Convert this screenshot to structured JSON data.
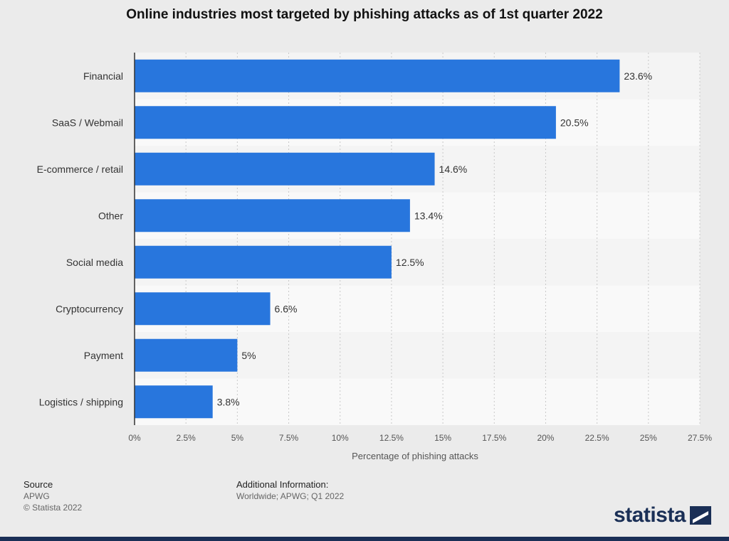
{
  "chart_data": {
    "type": "bar",
    "orientation": "horizontal",
    "title": "Online industries most targeted by phishing attacks as of 1st quarter 2022",
    "categories": [
      "Financial",
      "SaaS / Webmail",
      "E-commerce / retail",
      "Other",
      "Social media",
      "Cryptocurrency",
      "Payment",
      "Logistics / shipping"
    ],
    "values": [
      23.6,
      20.5,
      14.6,
      13.4,
      12.5,
      6.6,
      5,
      3.8
    ],
    "value_labels": [
      "23.6%",
      "20.5%",
      "14.6%",
      "13.4%",
      "12.5%",
      "6.6%",
      "5%",
      "3.8%"
    ],
    "xlabel": "Percentage of phishing attacks",
    "ylabel": "",
    "xlim": [
      0,
      27.5
    ],
    "xticks": [
      0,
      2.5,
      5,
      7.5,
      10,
      12.5,
      15,
      17.5,
      20,
      22.5,
      25,
      27.5
    ],
    "xtick_labels": [
      "0%",
      "2.5%",
      "5%",
      "7.5%",
      "10%",
      "12.5%",
      "15%",
      "17.5%",
      "20%",
      "22.5%",
      "25%",
      "27.5%"
    ],
    "grid": true,
    "bar_color": "#2876dd"
  },
  "footer": {
    "source_heading": "Source",
    "source_name": "APWG",
    "copyright": "© Statista 2022",
    "info_heading": "Additional Information:",
    "info_text": "Worldwide; APWG; Q1 2022",
    "logo_text": "statista"
  },
  "colors": {
    "brand_navy": "#1a2f56",
    "band_light": "#f4f4f4",
    "band_dark": "#ebebeb"
  }
}
